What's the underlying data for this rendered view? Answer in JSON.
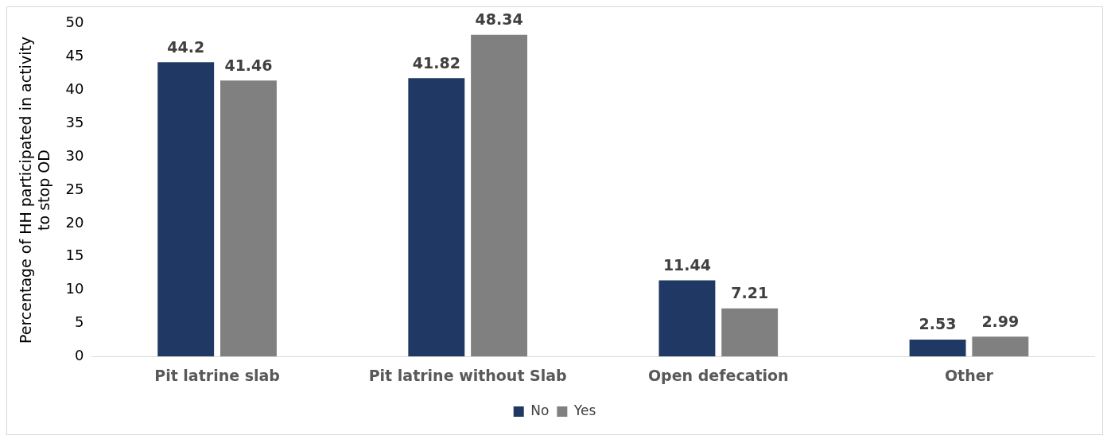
{
  "chart_data": {
    "type": "bar",
    "ylabel": "Percentage of HH participated in activity to stop OD",
    "categories": [
      "Pit latrine slab",
      "Pit latrine without Slab",
      "Open defecation",
      "Other"
    ],
    "series": [
      {
        "name": "No",
        "color": "#1f3864",
        "values": [
          44.2,
          41.82,
          11.44,
          2.53
        ]
      },
      {
        "name": "Yes",
        "color": "#808080",
        "values": [
          41.46,
          48.34,
          7.21,
          2.99
        ]
      }
    ],
    "ylim": [
      0,
      50
    ],
    "yticks": [
      0,
      5,
      10,
      15,
      20,
      25,
      30,
      35,
      40,
      45,
      50
    ],
    "grid": false,
    "legend": "bottom",
    "data_labels": true
  }
}
